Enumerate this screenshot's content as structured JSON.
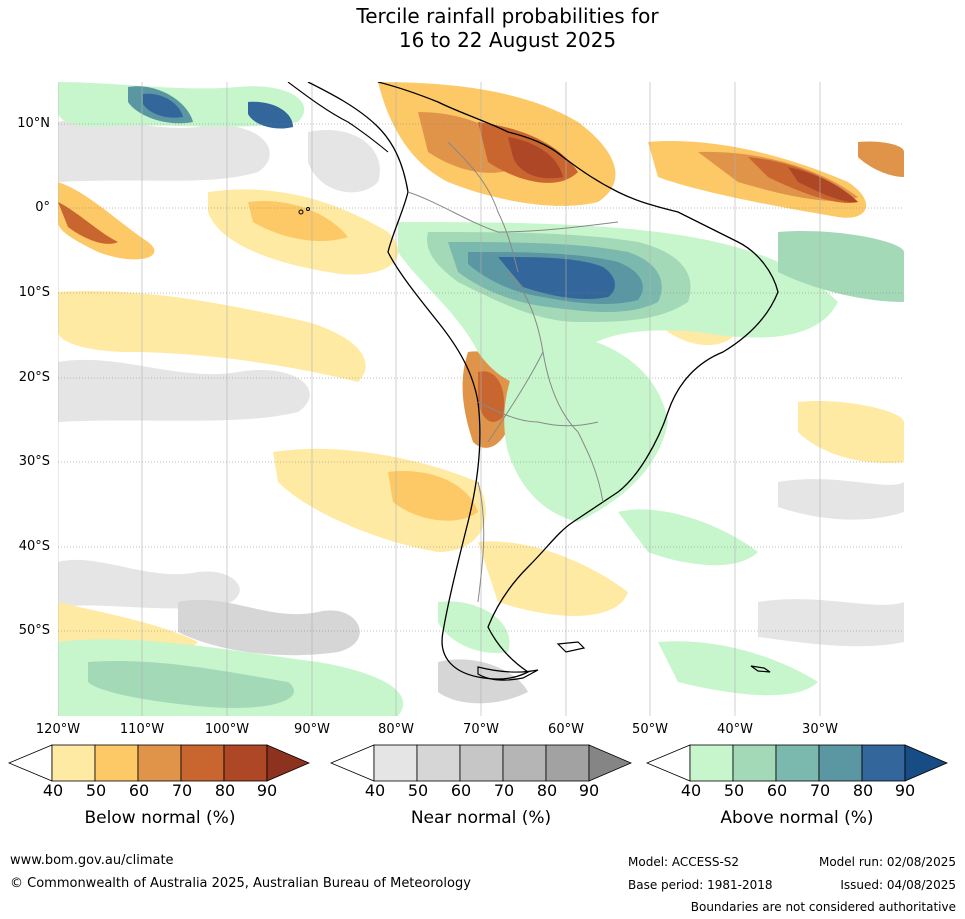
{
  "title_line1": "Tercile rainfall probabilities for",
  "title_line2": "16 to 22 August 2025",
  "lat_labels": [
    "10°N",
    "0°",
    "10°S",
    "20°S",
    "30°S",
    "40°S",
    "50°S"
  ],
  "lon_labels": [
    "120°W",
    "110°W",
    "100°W",
    "90°W",
    "80°W",
    "70°W",
    "60°W",
    "50°W",
    "40°W",
    "30°W"
  ],
  "colorbars": [
    {
      "label": "Below normal (%)",
      "ticks": [
        "40",
        "50",
        "60",
        "70",
        "80",
        "90"
      ],
      "colors": [
        "#ffeaa4",
        "#fdc966",
        "#e0944a",
        "#c9662f",
        "#ae4726",
        "#8e3220"
      ]
    },
    {
      "label": "Near normal (%)",
      "ticks": [
        "40",
        "50",
        "60",
        "70",
        "80",
        "90"
      ],
      "colors": [
        "#e5e5e5",
        "#d6d6d6",
        "#c6c6c6",
        "#b5b5b5",
        "#a2a2a2",
        "#858585"
      ]
    },
    {
      "label": "Above normal (%)",
      "ticks": [
        "40",
        "50",
        "60",
        "70",
        "80",
        "90"
      ],
      "colors": [
        "#c7f6cc",
        "#a4d9b8",
        "#7bb8ad",
        "#5b96a3",
        "#33669a",
        "#184c85"
      ]
    }
  ],
  "footer": {
    "website": "www.bom.gov.au/climate",
    "copyright": "© Commonwealth of Australia 2025, Australian Bureau of Meteorology",
    "model": "Model: ACCESS-S2",
    "base_period": "Base period: 1981-2018",
    "model_run": "Model run: 02/08/2025",
    "issued": "Issued: 04/08/2025",
    "disclaimer": "Boundaries are not considered authoritative"
  }
}
